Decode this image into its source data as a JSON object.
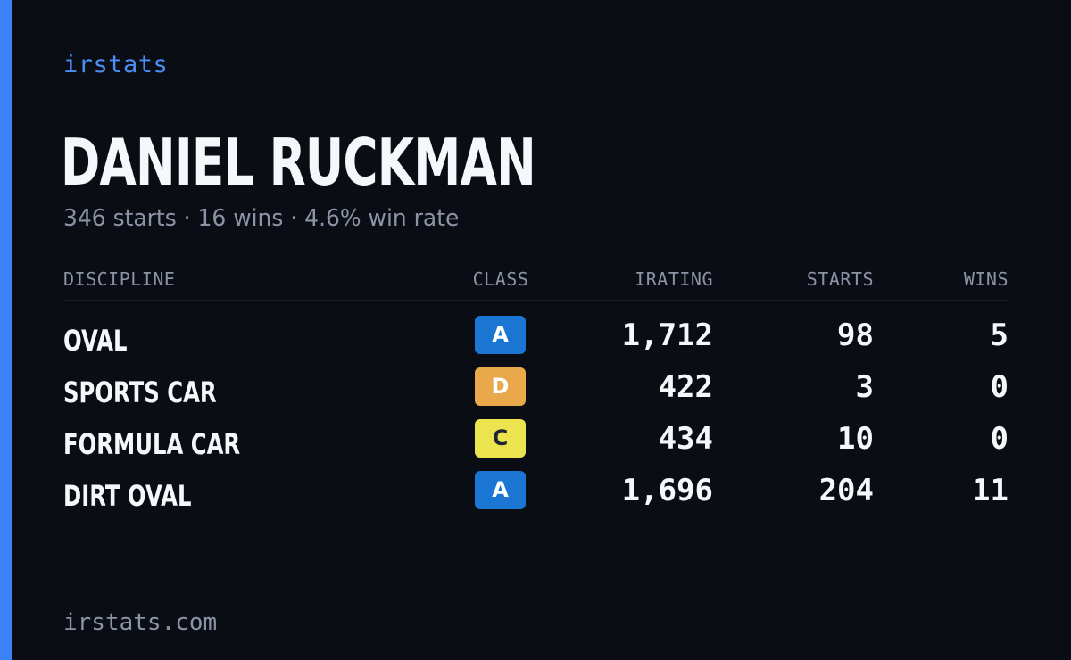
{
  "brand": "irstats",
  "player": {
    "name": "DANIEL RUCKMAN",
    "summary": "346 starts · 16 wins · 4.6% win rate"
  },
  "table": {
    "headers": {
      "discipline": "DISCIPLINE",
      "class": "CLASS",
      "irating": "IRATING",
      "starts": "STARTS",
      "wins": "WINS"
    },
    "rows": [
      {
        "discipline": "OVAL",
        "class": "A",
        "class_color": "#1a76d2",
        "class_text_color": "#ffffff",
        "irating": "1,712",
        "starts": "98",
        "wins": "5"
      },
      {
        "discipline": "SPORTS CAR",
        "class": "D",
        "class_color": "#e9a84a",
        "class_text_color": "#ffffff",
        "irating": "422",
        "starts": "3",
        "wins": "0"
      },
      {
        "discipline": "FORMULA CAR",
        "class": "C",
        "class_color": "#ece44f",
        "class_text_color": "#1f2430",
        "irating": "434",
        "starts": "10",
        "wins": "0"
      },
      {
        "discipline": "DIRT OVAL",
        "class": "A",
        "class_color": "#1a76d2",
        "class_text_color": "#ffffff",
        "irating": "1,696",
        "starts": "204",
        "wins": "11"
      }
    ]
  },
  "footer": "irstats.com",
  "colors": {
    "background": "#0a0d14",
    "accent": "#3b82f6",
    "muted_text": "#8b93a5",
    "primary_text": "#f5f7fa"
  }
}
